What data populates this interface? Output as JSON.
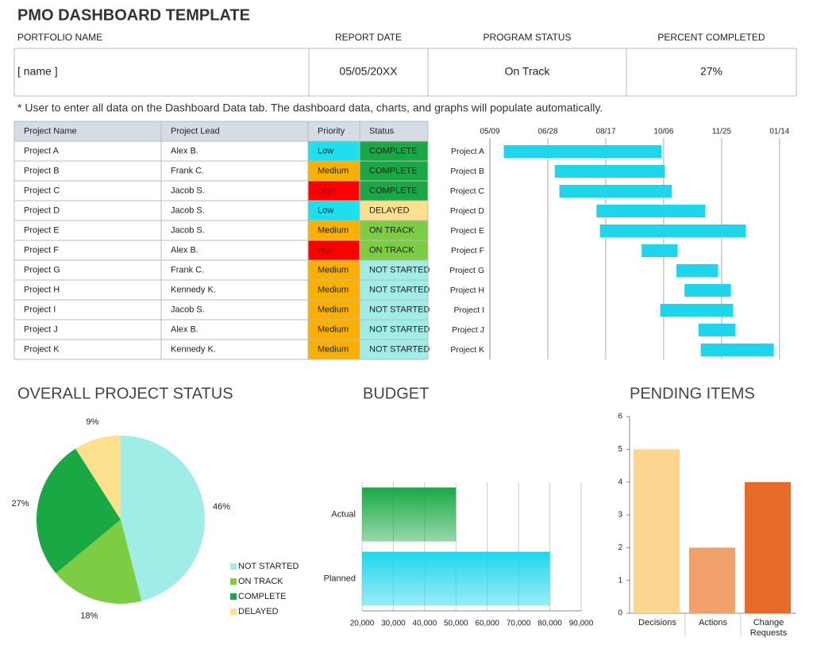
{
  "title": "PMO DASHBOARD TEMPLATE",
  "summary": {
    "headers": [
      "PORTFOLIO NAME",
      "REPORT DATE",
      "PROGRAM STATUS",
      "PERCENT COMPLETED"
    ],
    "values": [
      "[ name ]",
      "05/05/20XX",
      "On Track",
      "27%"
    ]
  },
  "note": "* User to enter all data on the Dashboard Data tab.  The dashboard data, charts, and graphs will populate automatically.",
  "table": {
    "headers": [
      "Project Name",
      "Project Lead",
      "Priority",
      "Status"
    ],
    "rows": [
      [
        "Project A",
        "Alex B.",
        "Low",
        "COMPLETE"
      ],
      [
        "Project B",
        "Frank C.",
        "Medium",
        "COMPLETE"
      ],
      [
        "Project C",
        "Jacob S.",
        "High",
        "COMPLETE"
      ],
      [
        "Project D",
        "Jacob S.",
        "Low",
        "DELAYED"
      ],
      [
        "Project E",
        "Jacob S.",
        "Medium",
        "ON TRACK"
      ],
      [
        "Project F",
        "Alex B.",
        "High",
        "ON TRACK"
      ],
      [
        "Project G",
        "Frank C.",
        "Medium",
        "NOT STARTED"
      ],
      [
        "Project H",
        "Kennedy K.",
        "Medium",
        "NOT STARTED"
      ],
      [
        "Project I",
        "Jacob S.",
        "Medium",
        "NOT STARTED"
      ],
      [
        "Project J",
        "Alex B.",
        "Medium",
        "NOT STARTED"
      ],
      [
        "Project K",
        "Kennedy K.",
        "Medium",
        "NOT STARTED"
      ]
    ],
    "priority_colors": {
      "Low": "#1ee0ec",
      "Medium": "#f9b000",
      "High": "#ff0000"
    },
    "status_colors": {
      "COMPLETE": "#1aa844",
      "DELAYED": "#fce08e",
      "ON TRACK": "#7ccc44",
      "NOT STARTED": "#a0ece6"
    }
  },
  "chart_data": [
    {
      "type": "gantt",
      "categories": [
        "Project A",
        "Project B",
        "Project C",
        "Project D",
        "Project E",
        "Project F",
        "Project G",
        "Project H",
        "Project I",
        "Project J",
        "Project K"
      ],
      "start": [
        12,
        56,
        60,
        92,
        95,
        131,
        161,
        168,
        147,
        180,
        182
      ],
      "end": [
        148,
        151,
        157,
        186,
        221,
        162,
        197,
        208,
        210,
        212,
        245
      ],
      "color": "#1ed6ec",
      "xlim": [
        0,
        259
      ],
      "xticks": [
        {
          "value": 0,
          "label": "05/09"
        },
        {
          "value": 50,
          "label": "06/28"
        },
        {
          "value": 100,
          "label": "08/17"
        },
        {
          "value": 150,
          "label": "10/06"
        },
        {
          "value": 200,
          "label": "11/25"
        },
        {
          "value": 250,
          "label": "01/14"
        }
      ],
      "grid": true
    },
    {
      "type": "pie",
      "title": "OVERALL PROJECT STATUS",
      "categories": [
        "NOT STARTED",
        "ON TRACK",
        "COMPLETE",
        "DELAYED"
      ],
      "values": [
        46,
        18,
        27,
        9
      ],
      "value_labels": [
        "46%",
        "18%",
        "27%",
        "9%"
      ],
      "colors": [
        "#a0ece6",
        "#7ccc44",
        "#1aa844",
        "#fce08e"
      ]
    },
    {
      "type": "hbar",
      "title": "BUDGET",
      "categories": [
        "Actual",
        "Planned"
      ],
      "values": [
        50000,
        80000
      ],
      "colors": [
        "#1aa844",
        "#1ed6ec"
      ],
      "xlim": [
        20000,
        90000
      ],
      "xticks": [
        {
          "value": 20000,
          "label": "20,000"
        },
        {
          "value": 30000,
          "label": "30,000"
        },
        {
          "value": 40000,
          "label": "40,000"
        },
        {
          "value": 50000,
          "label": "50,000"
        },
        {
          "value": 60000,
          "label": "60,000"
        },
        {
          "value": 70000,
          "label": "70,000"
        },
        {
          "value": 80000,
          "label": "80,000"
        },
        {
          "value": 90000,
          "label": "90,000"
        }
      ],
      "grid": true
    },
    {
      "type": "bar",
      "title": "PENDING ITEMS",
      "categories": [
        "Decisions",
        "Actions",
        "Change Requests"
      ],
      "values": [
        5,
        2,
        4
      ],
      "colors": [
        "#fcd690",
        "#f0a06a",
        "#e86a28"
      ],
      "ylim": [
        0,
        6
      ],
      "yticks": [
        0,
        1,
        2,
        3,
        4,
        5,
        6
      ]
    }
  ]
}
